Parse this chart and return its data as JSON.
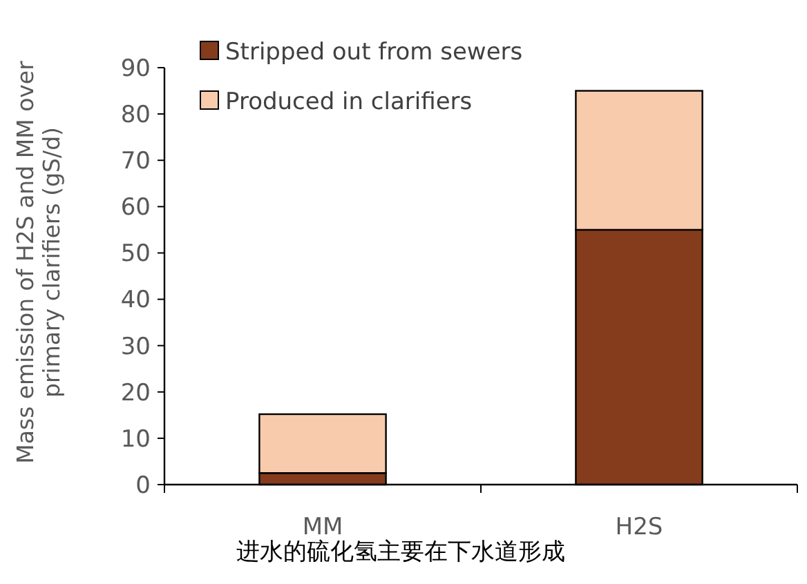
{
  "chart_data": {
    "type": "bar",
    "stacked": true,
    "categories": [
      "MM",
      "H2S"
    ],
    "series": [
      {
        "name": "Stripped out from sewers",
        "color": "#843c1c",
        "values": [
          2.5,
          55
        ]
      },
      {
        "name": "Produced in clarifiers",
        "color": "#f8cbad",
        "values": [
          12.7,
          30
        ]
      }
    ],
    "ylabel": "Mass emission of H2S and MM over primary clarifiers (gS/d)",
    "ylim": [
      0,
      90
    ],
    "yticks": [
      0,
      10,
      20,
      30,
      40,
      50,
      60,
      70,
      80,
      90
    ],
    "legend": "top left",
    "grid": false,
    "annotations": [
      "进水的硫化氢主要在下水道形成"
    ]
  }
}
